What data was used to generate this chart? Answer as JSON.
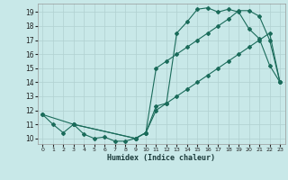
{
  "xlabel": "Humidex (Indice chaleur)",
  "background_color": "#c8e8e8",
  "grid_color": "#b0d0d0",
  "line_color": "#1a6b5a",
  "xlim": [
    -0.5,
    23.5
  ],
  "ylim": [
    9.6,
    19.6
  ],
  "xticks": [
    0,
    1,
    2,
    3,
    4,
    5,
    6,
    7,
    8,
    9,
    10,
    11,
    12,
    13,
    14,
    15,
    16,
    17,
    18,
    19,
    20,
    21,
    22,
    23
  ],
  "yticks": [
    10,
    11,
    12,
    13,
    14,
    15,
    16,
    17,
    18,
    19
  ],
  "curve1_x": [
    0,
    1,
    2,
    3,
    4,
    5,
    6,
    7,
    8,
    9,
    10,
    11,
    12,
    13,
    14,
    15,
    16,
    17,
    18,
    19,
    20,
    21,
    22,
    23
  ],
  "curve1_y": [
    11.7,
    11.0,
    10.4,
    11.0,
    10.3,
    10.0,
    10.1,
    9.8,
    9.8,
    10.0,
    10.4,
    12.3,
    12.5,
    17.5,
    18.3,
    19.2,
    19.3,
    19.0,
    19.2,
    19.0,
    17.8,
    17.1,
    15.2,
    14.0
  ],
  "curve2_x": [
    0,
    3,
    9,
    10,
    11,
    12,
    13,
    14,
    15,
    16,
    17,
    18,
    19,
    20,
    21,
    22,
    23
  ],
  "curve2_y": [
    11.7,
    11.0,
    10.0,
    10.4,
    15.0,
    15.5,
    16.0,
    16.5,
    17.0,
    17.5,
    18.0,
    18.5,
    19.1,
    19.1,
    18.7,
    17.0,
    14.0
  ],
  "curve3_x": [
    3,
    9,
    10,
    11,
    12,
    13,
    14,
    15,
    16,
    17,
    18,
    19,
    20,
    21,
    22,
    23
  ],
  "curve3_y": [
    11.0,
    10.0,
    10.4,
    12.0,
    12.5,
    13.0,
    13.5,
    14.0,
    14.5,
    15.0,
    15.5,
    16.0,
    16.5,
    17.0,
    17.5,
    14.0
  ]
}
